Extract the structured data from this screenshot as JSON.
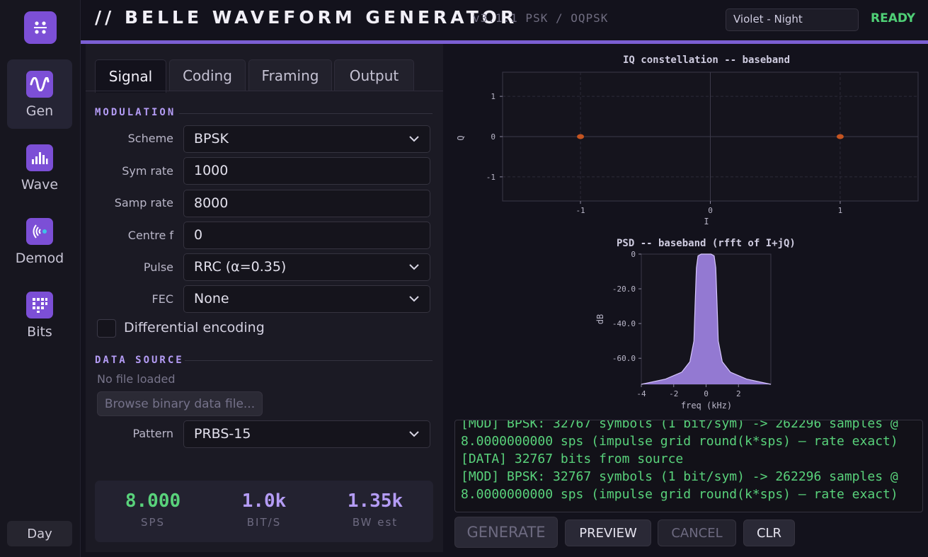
{
  "header": {
    "title": "// BELLE WAVEFORM GENERATOR",
    "version": "v3.1.1 PSK / OQPSK",
    "theme": "Violet - Night",
    "status": "READY"
  },
  "sidebar": {
    "items": [
      {
        "label": "Gen",
        "icon": "wave-icon",
        "active": true
      },
      {
        "label": "Wave",
        "icon": "bars-icon",
        "active": false
      },
      {
        "label": "Demod",
        "icon": "radio-icon",
        "active": false
      },
      {
        "label": "Bits",
        "icon": "grid-icon",
        "active": false
      }
    ],
    "day_label": "Day"
  },
  "tabs": [
    "Signal",
    "Coding",
    "Framing",
    "Output"
  ],
  "modulation": {
    "title": "MODULATION",
    "scheme_label": "Scheme",
    "scheme": "BPSK",
    "symrate_label": "Sym rate",
    "symrate": "1000",
    "samprate_label": "Samp rate",
    "samprate": "8000",
    "centre_label": "Centre f",
    "centre": "0",
    "pulse_label": "Pulse",
    "pulse": "RRC (α=0.35)",
    "fec_label": "FEC",
    "fec": "None",
    "diff_label": "Differential encoding"
  },
  "data_source": {
    "title": "DATA SOURCE",
    "no_file": "No file loaded",
    "browse": "Browse binary data file...",
    "pattern_label": "Pattern",
    "pattern": "PRBS-15"
  },
  "stats": [
    {
      "value": "8.000",
      "label": "SPS",
      "color": "#59d27b"
    },
    {
      "value": "1.0k",
      "label": "BIT/S",
      "color": "#b49cf5"
    },
    {
      "value": "1.35k",
      "label": "BW est",
      "color": "#b49cf5"
    }
  ],
  "chart_data": [
    {
      "type": "scatter",
      "title": "IQ constellation -- baseband",
      "xlabel": "I",
      "ylabel": "Q",
      "xlim": [
        -1.6,
        1.6
      ],
      "ylim": [
        -1.6,
        1.6
      ],
      "xticks": [
        "-1",
        "0",
        "1"
      ],
      "yticks": [
        "1",
        "0",
        "-1"
      ],
      "grid": true,
      "points": [
        {
          "x": -1,
          "y": 0
        },
        {
          "x": 1,
          "y": 0
        }
      ],
      "point_color": "#c45420"
    },
    {
      "type": "area",
      "title": "PSD -- baseband (rfft of I+jQ)",
      "xlabel": "freq (kHz)",
      "ylabel": "dB",
      "xlim": [
        -4,
        4
      ],
      "ylim": [
        -75,
        0
      ],
      "xticks": [
        "-4",
        "-2",
        "0",
        "2"
      ],
      "yticks": [
        "0",
        "-20.0",
        "-40.0",
        "-60.0"
      ],
      "color": "#a98bf2",
      "x": [
        -4,
        -2.5,
        -1.5,
        -1.0,
        -0.75,
        -0.68,
        -0.6,
        -0.5,
        -0.3,
        0,
        0.3,
        0.5,
        0.6,
        0.68,
        0.75,
        1.0,
        1.5,
        2.5,
        4
      ],
      "y": [
        -75,
        -72,
        -68,
        -62,
        -50,
        -30,
        -8,
        -1,
        0,
        0,
        0,
        -1,
        -8,
        -30,
        -50,
        -62,
        -68,
        -72,
        -75
      ]
    }
  ],
  "console": {
    "lines": [
      "[MOD] BPSK: 32767 symbols (1 bit/sym) -> 262296 samples @",
      "8.0000000000 sps (impulse grid round(k*sps) — rate exact)",
      "[DATA] 32767 bits from source",
      "[MOD] BPSK: 32767 symbols (1 bit/sym) -> 262296 samples @",
      "8.0000000000 sps (impulse grid round(k*sps) — rate exact)"
    ]
  },
  "buttons": {
    "generate": "GENERATE",
    "preview": "PREVIEW",
    "cancel": "CANCEL",
    "clr": "CLR"
  }
}
